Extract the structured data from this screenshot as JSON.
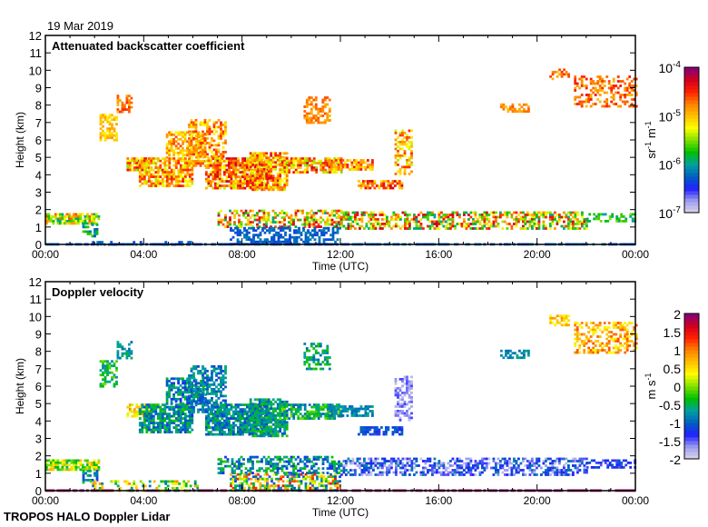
{
  "header": {
    "date": "19 Mar 2019"
  },
  "footer": {
    "label": "TROPOS HALO Doppler Lidar"
  },
  "colors": {
    "cmap": [
      "#dcd6e8",
      "#9c9cf0",
      "#2020ff",
      "#0060c0",
      "#00a0a0",
      "#00c000",
      "#80e000",
      "#ffff00",
      "#ffc000",
      "#ff8000",
      "#ff2000",
      "#d00020",
      "#800080"
    ],
    "axis": "#000000"
  },
  "chart_data": [
    {
      "type": "heatmap",
      "title": "Attenuated backscatter coefficient",
      "xlabel": "Time (UTC)",
      "ylabel": "Height (km)",
      "xlim": [
        0,
        24
      ],
      "ylim": [
        0,
        12
      ],
      "xticks": [
        0,
        4,
        8,
        12,
        16,
        20,
        24
      ],
      "xtick_labels": [
        "00:00",
        "04:00",
        "08:00",
        "12:00",
        "16:00",
        "20:00",
        "00:00"
      ],
      "yticks": [
        0,
        1,
        2,
        3,
        4,
        5,
        6,
        7,
        8,
        9,
        10,
        11,
        12
      ],
      "ytick_labels": [
        "0",
        "1",
        "2",
        "3",
        "4",
        "5",
        "6",
        "7",
        "8",
        "9",
        "10",
        "11",
        "12"
      ],
      "colorbar": {
        "label_base": "sr",
        "label_exp1": "-1",
        "label_unit2": " m",
        "label_exp2": "-1",
        "scale": "log10",
        "range": [
          -7,
          -4
        ],
        "tick_bases": [
          "10",
          "10",
          "10",
          "10"
        ],
        "tick_exps": [
          "-4",
          "-5",
          "-6",
          "-7"
        ],
        "tick_values": [
          -4,
          -5,
          -6,
          -7
        ]
      },
      "features_note": "[t_start_h, t_end_h, z_low_km, z_high_km, value_min, value_max, fill_density]",
      "features": [
        [
          0,
          2.2,
          1.2,
          1.8,
          -6.0,
          -4.6,
          0.8
        ],
        [
          1.5,
          2.1,
          0.5,
          1.2,
          -6.3,
          -5.6,
          0.5
        ],
        [
          0,
          24,
          0,
          0.08,
          -6.4,
          -6.1,
          0.7
        ],
        [
          2.2,
          2.9,
          6.0,
          7.5,
          -5.2,
          -4.8,
          0.6
        ],
        [
          2.9,
          3.5,
          7.6,
          8.6,
          -5.0,
          -4.5,
          0.6
        ],
        [
          3.3,
          4.2,
          4.3,
          5.0,
          -5.5,
          -4.3,
          0.8
        ],
        [
          3.8,
          6.0,
          3.4,
          5.0,
          -5.4,
          -4.4,
          0.75
        ],
        [
          4.9,
          6.5,
          5.0,
          6.5,
          -5.3,
          -4.6,
          0.6
        ],
        [
          5.8,
          7.3,
          4.5,
          7.2,
          -5.3,
          -4.5,
          0.55
        ],
        [
          6.5,
          9.0,
          3.3,
          5.0,
          -5.4,
          -4.2,
          0.8
        ],
        [
          8.3,
          9.8,
          3.2,
          5.3,
          -5.4,
          -4.3,
          0.8
        ],
        [
          9.5,
          12.0,
          4.2,
          5.0,
          -5.5,
          -4.2,
          0.7
        ],
        [
          10.5,
          11.6,
          7.0,
          8.5,
          -5.0,
          -4.6,
          0.5
        ],
        [
          11.5,
          13.3,
          4.3,
          4.9,
          -5.2,
          -4.4,
          0.7
        ],
        [
          12.7,
          14.5,
          3.3,
          3.7,
          -5.2,
          -4.2,
          0.7
        ],
        [
          14.2,
          14.9,
          4.0,
          6.6,
          -5.4,
          -4.5,
          0.5
        ],
        [
          7.0,
          12.0,
          1.0,
          2.0,
          -6.0,
          -4.2,
          0.5
        ],
        [
          12.0,
          22.0,
          0.9,
          1.9,
          -6.0,
          -4.2,
          0.55
        ],
        [
          7.5,
          12.0,
          0.05,
          1.0,
          -6.4,
          -6.1,
          0.55
        ],
        [
          18.5,
          19.7,
          7.6,
          8.1,
          -5.0,
          -4.6,
          0.6
        ],
        [
          20.5,
          21.3,
          9.5,
          10.1,
          -5.0,
          -4.5,
          0.5
        ],
        [
          21.5,
          24,
          8.0,
          9.7,
          -5.0,
          -4.4,
          0.45
        ],
        [
          22.0,
          24,
          1.4,
          1.8,
          -6.0,
          -5.5,
          0.5
        ],
        [
          1.8,
          6.2,
          0.02,
          0.2,
          -6.4,
          -6.1,
          0.3
        ]
      ]
    },
    {
      "type": "heatmap",
      "title": "Doppler velocity",
      "xlabel": "Time (UTC)",
      "ylabel": "Height (km)",
      "xlim": [
        0,
        24
      ],
      "ylim": [
        0,
        12
      ],
      "xticks": [
        0,
        4,
        8,
        12,
        16,
        20,
        24
      ],
      "xtick_labels": [
        "00:00",
        "04:00",
        "08:00",
        "12:00",
        "16:00",
        "20:00",
        "00:00"
      ],
      "yticks": [
        0,
        1,
        2,
        3,
        4,
        5,
        6,
        7,
        8,
        9,
        10,
        11,
        12
      ],
      "ytick_labels": [
        "0",
        "1",
        "2",
        "3",
        "4",
        "5",
        "6",
        "7",
        "8",
        "9",
        "10",
        "11",
        "12"
      ],
      "colorbar": {
        "label_base": "m",
        "label_exp1": "",
        "label_unit2": " s",
        "label_exp2": "-1",
        "scale": "linear",
        "range": [
          -2,
          2
        ],
        "tick_bases": [
          "2",
          "1.5",
          "1",
          "0.5",
          "0",
          "-0.5",
          "-1",
          "-1.5",
          "-2"
        ],
        "tick_exps": [
          "",
          "",
          "",
          "",
          "",
          "",
          "",
          "",
          ""
        ],
        "tick_values": [
          2,
          1.5,
          1,
          0.5,
          0,
          -0.5,
          -1,
          -1.5,
          -2
        ]
      },
      "features_note": "[t_start_h, t_end_h, z_low_km, z_high_km, value_min, value_max, fill_density]",
      "features": [
        [
          0,
          2.2,
          1.2,
          1.8,
          -0.6,
          0.8,
          0.8
        ],
        [
          1.5,
          2.1,
          0.5,
          1.2,
          -1.2,
          -0.4,
          0.5
        ],
        [
          0,
          24,
          0,
          0.08,
          1.8,
          2.0,
          0.7
        ],
        [
          2.2,
          2.9,
          6.0,
          7.5,
          -0.8,
          0.0,
          0.6
        ],
        [
          2.9,
          3.5,
          7.6,
          8.6,
          -1.0,
          -0.4,
          0.6
        ],
        [
          3.3,
          4.2,
          4.3,
          5.0,
          0.2,
          1.0,
          0.8
        ],
        [
          3.8,
          6.0,
          3.4,
          5.0,
          -1.2,
          -0.2,
          0.75
        ],
        [
          4.9,
          6.5,
          5.0,
          6.5,
          -1.3,
          -0.3,
          0.6
        ],
        [
          5.8,
          7.3,
          4.5,
          7.2,
          -1.2,
          -0.5,
          0.55
        ],
        [
          6.5,
          9.0,
          3.3,
          5.0,
          -1.2,
          -0.3,
          0.8
        ],
        [
          8.3,
          9.8,
          3.2,
          5.3,
          -1.1,
          -0.2,
          0.8
        ],
        [
          9.5,
          12.0,
          4.2,
          5.0,
          -1.0,
          0.0,
          0.7
        ],
        [
          10.5,
          11.6,
          7.0,
          8.5,
          -1.0,
          -0.2,
          0.5
        ],
        [
          11.5,
          13.3,
          4.3,
          4.9,
          -1.0,
          -0.6,
          0.7
        ],
        [
          12.7,
          14.5,
          3.3,
          3.7,
          -1.4,
          -0.9,
          0.7
        ],
        [
          14.2,
          14.9,
          4.0,
          6.6,
          -1.9,
          -1.4,
          0.5
        ],
        [
          7.0,
          12.0,
          1.0,
          2.0,
          -1.3,
          -0.2,
          0.5
        ],
        [
          12.0,
          22.0,
          0.9,
          1.9,
          -1.9,
          -0.8,
          0.55
        ],
        [
          7.5,
          12.0,
          0.05,
          1.0,
          -1.5,
          1.5,
          0.55
        ],
        [
          18.5,
          19.7,
          7.6,
          8.1,
          -1.0,
          -0.6,
          0.6
        ],
        [
          20.5,
          21.3,
          9.5,
          10.1,
          0.3,
          1.0,
          0.5
        ],
        [
          21.5,
          24,
          8.0,
          9.7,
          0.3,
          1.2,
          0.45
        ],
        [
          22.0,
          24,
          1.4,
          1.8,
          -1.5,
          -1.0,
          0.5
        ],
        [
          1.8,
          6.2,
          0.02,
          0.6,
          -1.0,
          1.0,
          0.3
        ]
      ]
    }
  ]
}
